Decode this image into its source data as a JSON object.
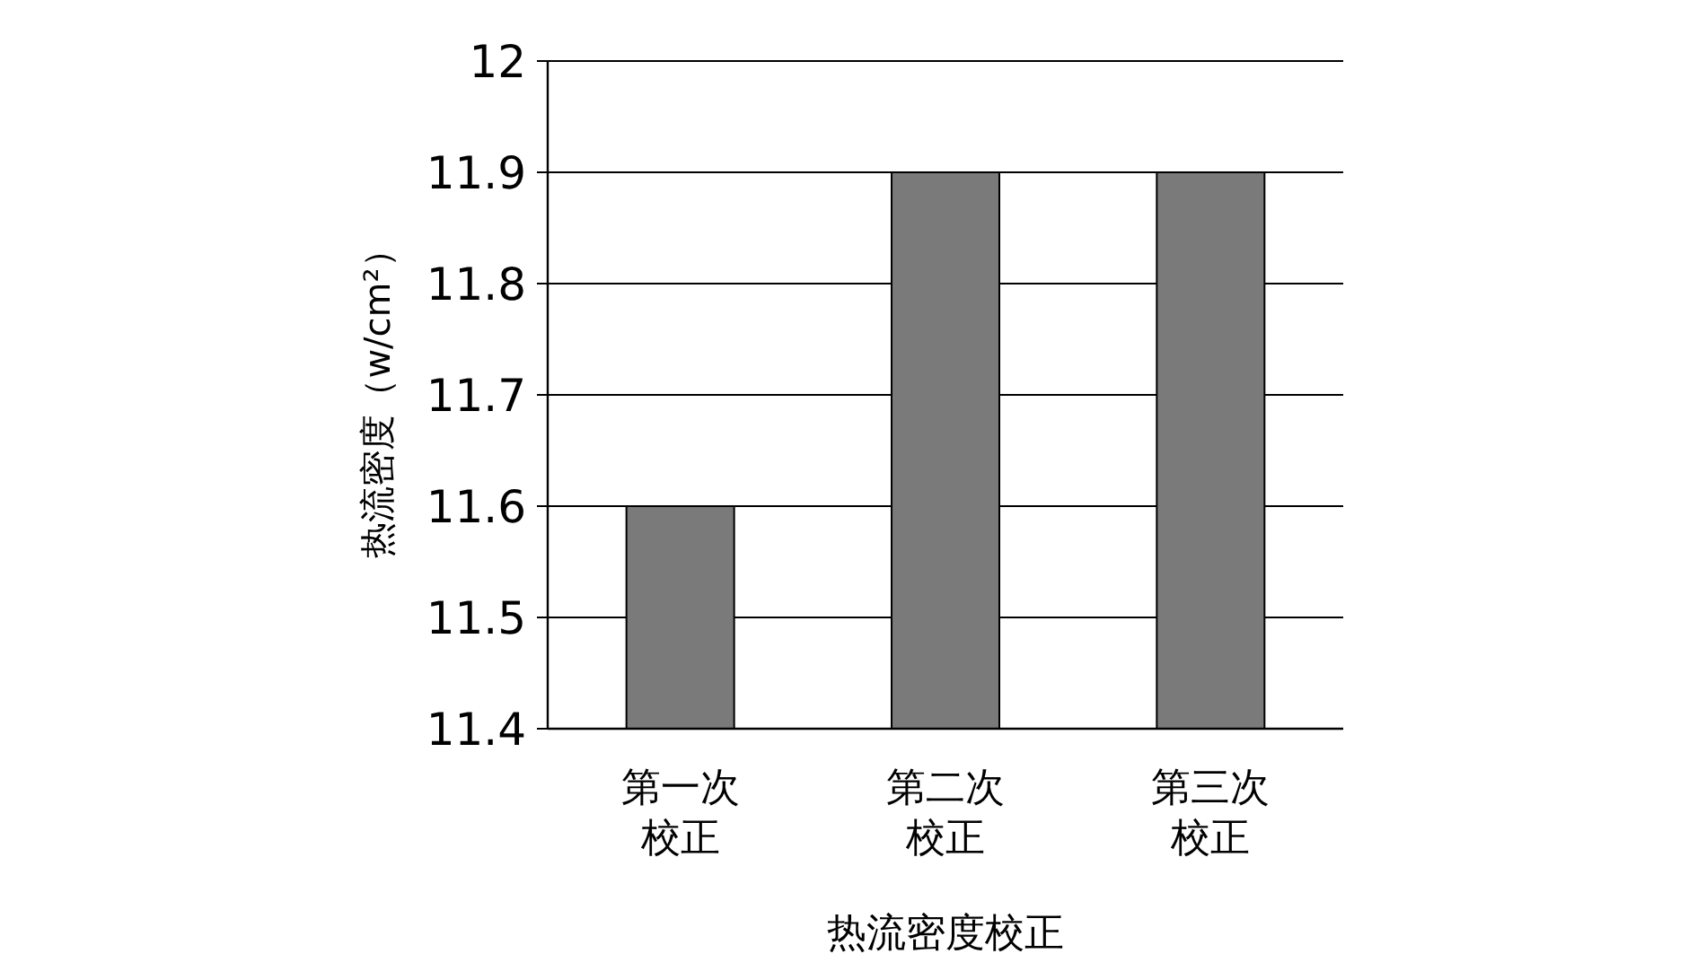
{
  "chart_data": {
    "type": "bar",
    "categories": [
      "第一次校正",
      "第二次校正",
      "第三次校正"
    ],
    "values": [
      11.6,
      11.9,
      11.9
    ],
    "color": "#7a7a7a",
    "ylim": [
      11.4,
      12
    ],
    "yticks": [
      11.4,
      11.5,
      11.6,
      11.7,
      11.8,
      11.9,
      12
    ],
    "grid": "y",
    "xlabel": "热流密度校正",
    "ylabel": "热流密度（w/cm²）"
  }
}
